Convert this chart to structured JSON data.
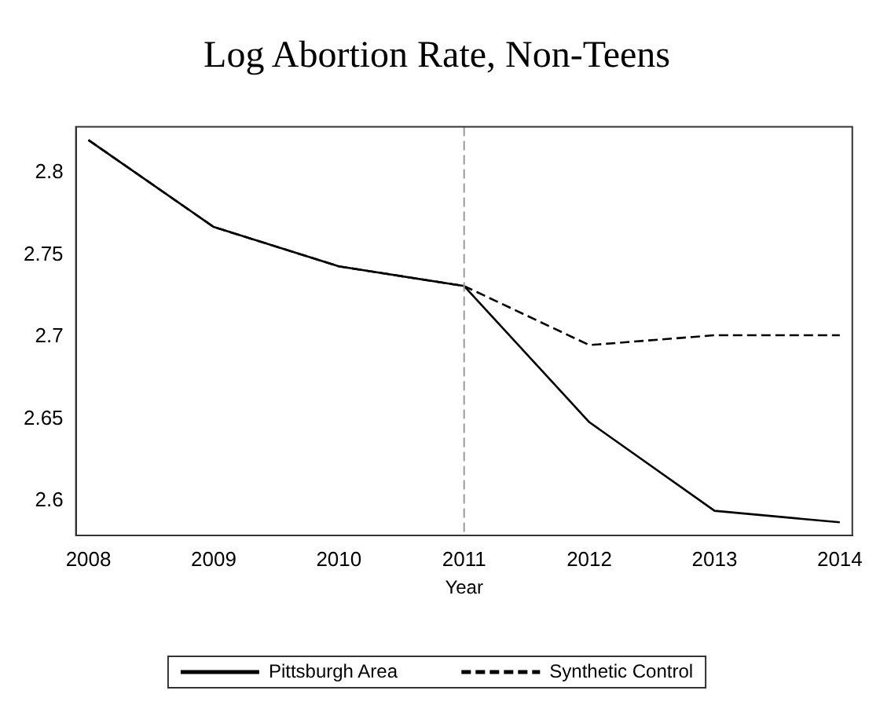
{
  "chart_data": {
    "type": "line",
    "title": "Log Abortion Rate, Non-Teens",
    "xlabel": "Year",
    "x": [
      2008,
      2009,
      2010,
      2011,
      2012,
      2013,
      2014
    ],
    "series": [
      {
        "name": "Pittsburgh Area",
        "color": "#000000",
        "line_style": "solid",
        "values": [
          2.82,
          2.767,
          2.743,
          2.731,
          2.648,
          2.594,
          2.587
        ]
      },
      {
        "name": "Synthetic Control",
        "color": "#000000",
        "line_style": "dashed",
        "values": [
          2.82,
          2.767,
          2.743,
          2.731,
          2.695,
          2.701,
          2.701
        ]
      }
    ],
    "xlim": [
      2007.9,
      2014.1
    ],
    "xticks": [
      2008,
      2009,
      2010,
      2011,
      2012,
      2013,
      2014
    ],
    "ylim": [
      2.579,
      2.828
    ],
    "yticks": [
      2.6,
      2.65,
      2.7,
      2.75,
      2.8
    ],
    "ref_lines": [
      {
        "axis": "x",
        "value": 2011,
        "color": "#999999",
        "line_style": "dashed"
      }
    ],
    "grid": false,
    "legend": "bottom",
    "marker": "none"
  }
}
